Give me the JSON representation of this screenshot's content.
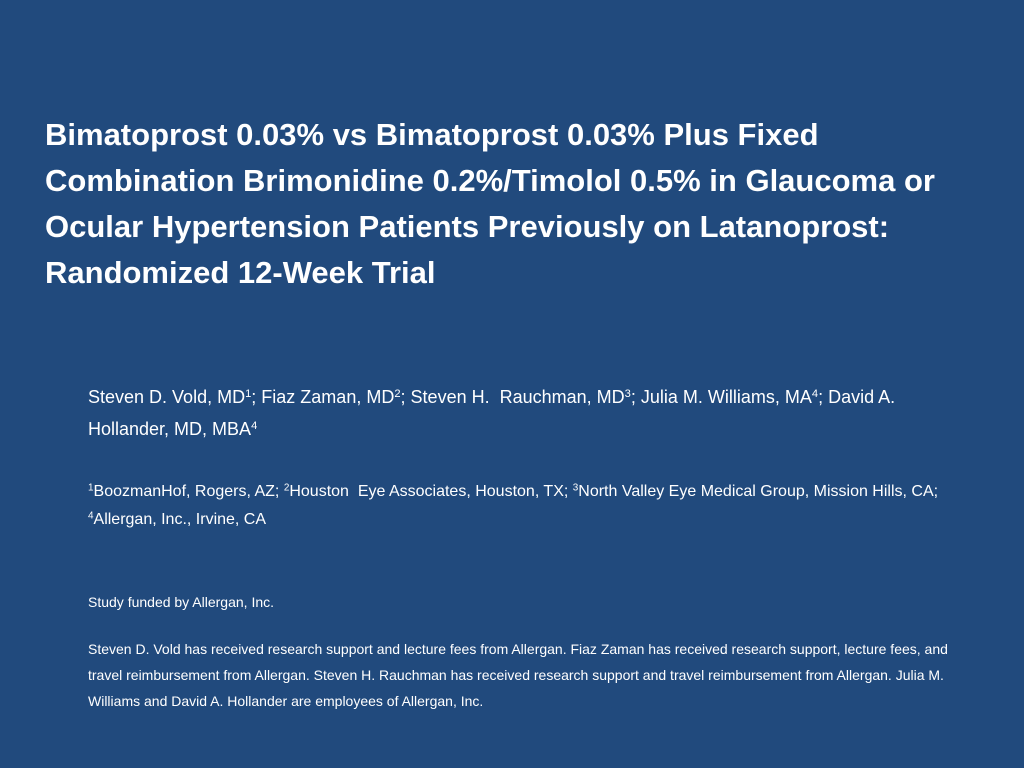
{
  "title": "Bimatoprost 0.03% vs Bimatoprost 0.03% Plus Fixed Combination Brimonidine 0.2%/Timolol 0.5% in Glaucoma or Ocular Hypertension Patients Previously on Latanoprost: Randomized 12-Week Trial",
  "authors": [
    {
      "text": "Steven D. Vold, MD",
      "sup": "1"
    },
    {
      "text": "; Fiaz Zaman, MD",
      "sup": "2"
    },
    {
      "text": "; Steven H.  Rauchman, MD",
      "sup": "3"
    },
    {
      "text": "; Julia M. Williams, MA",
      "sup": "4"
    },
    {
      "text": "; David A. Hollander, MD, MBA",
      "sup": "4"
    }
  ],
  "affiliations": [
    {
      "sup": "1",
      "text": "BoozmanHof, Rogers, AZ; "
    },
    {
      "sup": "2",
      "text": "Houston  Eye Associates, Houston, TX; "
    },
    {
      "sup": "3",
      "text": "North Valley Eye Medical Group, Mission Hills, CA;  "
    },
    {
      "sup": "4",
      "text": "Allergan, Inc., Irvine, CA"
    }
  ],
  "funding": "Study funded by Allergan, Inc.",
  "disclosure": "Steven D. Vold has received research support and lecture fees from Allergan. Fiaz Zaman has received research support, lecture fees, and travel reimbursement from Allergan. Steven H. Rauchman has received research support and travel reimbursement from Allergan. Julia M. Williams and David A. Hollander are employees of Allergan, Inc."
}
